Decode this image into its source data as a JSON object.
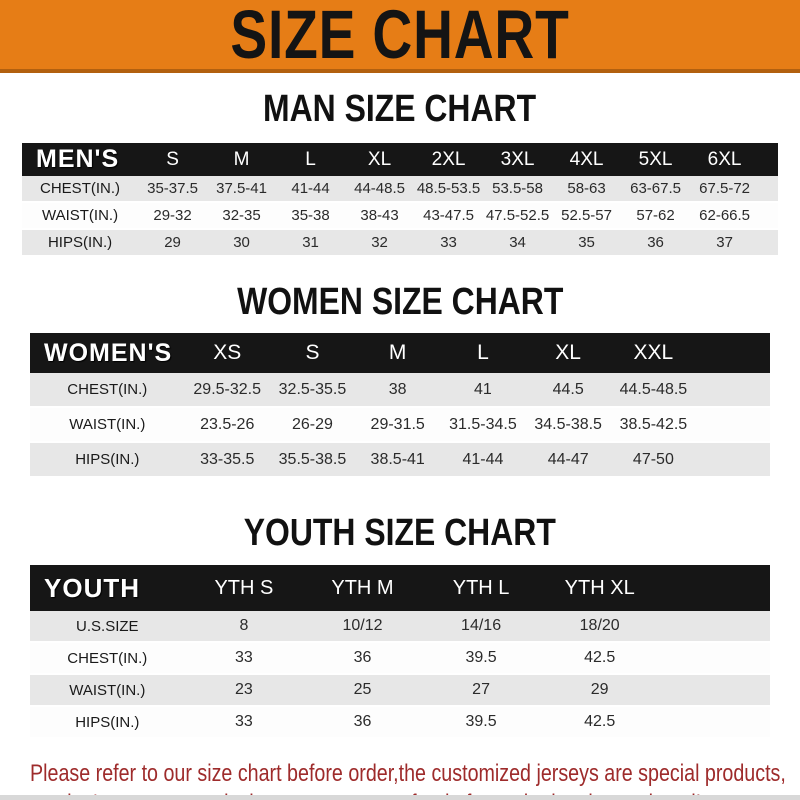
{
  "banner": {
    "title": "SIZE CHART",
    "bg_color": "#e67d16",
    "text_color": "#141414"
  },
  "colors": {
    "header_band_black": "#161616",
    "row_gray": "#e7e7e7",
    "footer_red": "#9e2b2b"
  },
  "sections": [
    {
      "id": "men",
      "title": "MAN SIZE CHART",
      "corner_label": "MEN'S",
      "columns": [
        "S",
        "M",
        "L",
        "XL",
        "2XL",
        "3XL",
        "4XL",
        "5XL",
        "6XL"
      ],
      "rows": [
        {
          "label": "CHEST(IN.)",
          "values": [
            "35-37.5",
            "37.5-41",
            "41-44",
            "44-48.5",
            "48.5-53.5",
            "53.5-58",
            "58-63",
            "63-67.5",
            "67.5-72"
          ]
        },
        {
          "label": "WAIST(IN.)",
          "values": [
            "29-32",
            "32-35",
            "35-38",
            "38-43",
            "43-47.5",
            "47.5-52.5",
            "52.5-57",
            "57-62",
            "62-66.5"
          ]
        },
        {
          "label": "HIPS(IN.)",
          "values": [
            "29",
            "30",
            "31",
            "32",
            "33",
            "34",
            "35",
            "36",
            "37"
          ]
        }
      ]
    },
    {
      "id": "women",
      "title": "WOMEN SIZE CHART",
      "corner_label": "WOMEN'S",
      "columns": [
        "XS",
        "S",
        "M",
        "L",
        "XL",
        "XXL"
      ],
      "rows": [
        {
          "label": "CHEST(IN.)",
          "values": [
            "29.5-32.5",
            "32.5-35.5",
            "38",
            "41",
            "44.5",
            "44.5-48.5"
          ]
        },
        {
          "label": "WAIST(IN.)",
          "values": [
            "23.5-26",
            "26-29",
            "29-31.5",
            "31.5-34.5",
            "34.5-38.5",
            "38.5-42.5"
          ]
        },
        {
          "label": "HIPS(IN.)",
          "values": [
            "33-35.5",
            "35.5-38.5",
            "38.5-41",
            "41-44",
            "44-47",
            "47-50"
          ]
        }
      ]
    },
    {
      "id": "youth",
      "title": "YOUTH SIZE CHART",
      "corner_label": "YOUTH",
      "columns": [
        "YTH S",
        "YTH M",
        "YTH L",
        "YTH XL"
      ],
      "rows": [
        {
          "label": "U.S.SIZE",
          "values": [
            "8",
            "10/12",
            "14/16",
            "18/20"
          ]
        },
        {
          "label": "CHEST(IN.)",
          "values": [
            "33",
            "36",
            "39.5",
            "42.5"
          ]
        },
        {
          "label": "WAIST(IN.)",
          "values": [
            "23",
            "25",
            "27",
            "29"
          ]
        },
        {
          "label": "HIPS(IN.)",
          "values": [
            "33",
            "36",
            "39.5",
            "42.5"
          ]
        }
      ]
    }
  ],
  "footer": {
    "line1": "Please refer to our size chart before order,the customized jerseys are special products,",
    "line2": "we don't accept cancel, change, teturn or refund after order has been placed!"
  }
}
